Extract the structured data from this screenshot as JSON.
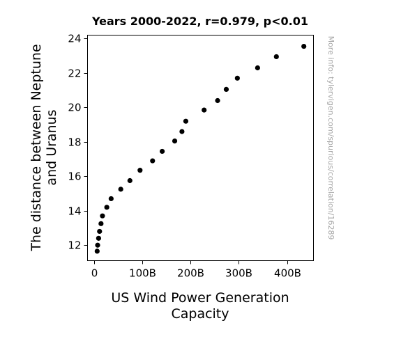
{
  "chart_data": {
    "type": "scatter",
    "title": "Years 2000-2022, r=0.979, p<0.01",
    "xlabel_lines": [
      "US Wind Power Generation",
      "Capacity"
    ],
    "ylabel_lines": [
      "The distance between Neptune",
      "and Uranus"
    ],
    "side_note": "More info: tylervigen.com/spurious/correlation/16289",
    "xlim": [
      -14,
      455
    ],
    "ylim": [
      11.1,
      24.2
    ],
    "x_ticks": [
      0,
      100,
      200,
      300,
      400
    ],
    "x_tick_labels": [
      "0",
      "100B",
      "200B",
      "300B",
      "400B"
    ],
    "y_ticks": [
      12,
      14,
      16,
      18,
      20,
      22,
      24
    ],
    "y_tick_labels": [
      "12",
      "14",
      "16",
      "18",
      "20",
      "22",
      "24"
    ],
    "marker_color": "#000000",
    "points": [
      {
        "x": 6,
        "y": 11.65
      },
      {
        "x": 7,
        "y": 12.0
      },
      {
        "x": 9,
        "y": 12.4
      },
      {
        "x": 11,
        "y": 12.8
      },
      {
        "x": 14,
        "y": 13.25
      },
      {
        "x": 17,
        "y": 13.7
      },
      {
        "x": 26,
        "y": 14.2
      },
      {
        "x": 35,
        "y": 14.7
      },
      {
        "x": 55,
        "y": 15.25
      },
      {
        "x": 74,
        "y": 15.75
      },
      {
        "x": 95,
        "y": 16.35
      },
      {
        "x": 121,
        "y": 16.9
      },
      {
        "x": 141,
        "y": 17.45
      },
      {
        "x": 167,
        "y": 18.05
      },
      {
        "x": 182,
        "y": 18.6
      },
      {
        "x": 190,
        "y": 19.2
      },
      {
        "x": 228,
        "y": 19.85
      },
      {
        "x": 256,
        "y": 20.4
      },
      {
        "x": 274,
        "y": 21.05
      },
      {
        "x": 297,
        "y": 21.7
      },
      {
        "x": 339,
        "y": 22.3
      },
      {
        "x": 378,
        "y": 22.95
      },
      {
        "x": 435,
        "y": 23.55
      }
    ]
  }
}
